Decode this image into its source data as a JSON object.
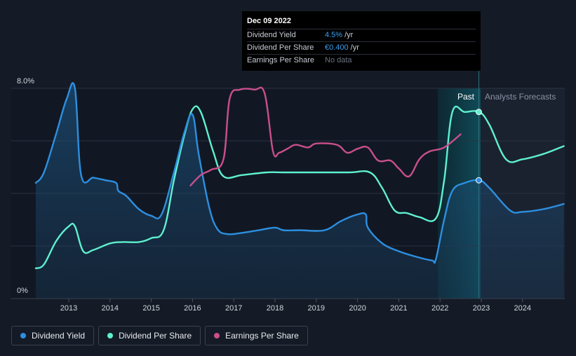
{
  "chart_data": {
    "type": "line",
    "y_axis": {
      "max_label": "8.0%",
      "min_label": "0%",
      "ylim": [
        0,
        8.0
      ]
    },
    "x_ticks": [
      "2013",
      "2014",
      "2015",
      "2016",
      "2017",
      "2018",
      "2019",
      "2020",
      "2021",
      "2022",
      "2023",
      "2024"
    ],
    "regions": {
      "past": "Past",
      "forecast": "Analysts Forecasts"
    },
    "series": [
      {
        "name": "Dividend Yield",
        "color": "#2d8fe0",
        "axis": "percent",
        "points": [
          [
            2012.2,
            4.4
          ],
          [
            2012.4,
            4.8
          ],
          [
            2012.7,
            6.3
          ],
          [
            2012.95,
            7.6
          ],
          [
            2013.15,
            8.0
          ],
          [
            2013.3,
            4.7
          ],
          [
            2013.6,
            4.6
          ],
          [
            2013.9,
            4.5
          ],
          [
            2014.15,
            4.4
          ],
          [
            2014.2,
            4.1
          ],
          [
            2014.4,
            3.9
          ],
          [
            2014.7,
            3.4
          ],
          [
            2015.0,
            3.15
          ],
          [
            2015.25,
            3.2
          ],
          [
            2015.55,
            4.8
          ],
          [
            2015.8,
            6.3
          ],
          [
            2016.0,
            7.0
          ],
          [
            2016.15,
            5.5
          ],
          [
            2016.4,
            3.5
          ],
          [
            2016.6,
            2.65
          ],
          [
            2016.85,
            2.45
          ],
          [
            2017.2,
            2.5
          ],
          [
            2017.6,
            2.6
          ],
          [
            2018.0,
            2.7
          ],
          [
            2018.2,
            2.6
          ],
          [
            2018.6,
            2.6
          ],
          [
            2019.2,
            2.6
          ],
          [
            2019.6,
            2.95
          ],
          [
            2020.0,
            3.2
          ],
          [
            2020.2,
            3.2
          ],
          [
            2020.25,
            2.7
          ],
          [
            2020.6,
            2.1
          ],
          [
            2021.0,
            1.8
          ],
          [
            2021.4,
            1.6
          ],
          [
            2021.8,
            1.45
          ],
          [
            2021.9,
            1.5
          ],
          [
            2022.1,
            3.0
          ],
          [
            2022.3,
            4.1
          ],
          [
            2022.6,
            4.4
          ],
          [
            2022.95,
            4.5
          ],
          [
            2023.2,
            4.2
          ],
          [
            2023.7,
            3.35
          ],
          [
            2024.0,
            3.3
          ],
          [
            2024.5,
            3.4
          ],
          [
            2025.0,
            3.6
          ]
        ]
      },
      {
        "name": "Dividend Per Share",
        "color": "#5ff0cf",
        "axis": "percent",
        "points": [
          [
            2012.2,
            1.15
          ],
          [
            2012.4,
            1.3
          ],
          [
            2012.7,
            2.2
          ],
          [
            2013.0,
            2.75
          ],
          [
            2013.15,
            2.75
          ],
          [
            2013.35,
            1.8
          ],
          [
            2013.6,
            1.85
          ],
          [
            2014.0,
            2.1
          ],
          [
            2014.3,
            2.15
          ],
          [
            2014.7,
            2.15
          ],
          [
            2015.0,
            2.3
          ],
          [
            2015.3,
            2.6
          ],
          [
            2015.55,
            4.5
          ],
          [
            2015.8,
            6.2
          ],
          [
            2016.0,
            7.2
          ],
          [
            2016.2,
            7.1
          ],
          [
            2016.5,
            5.6
          ],
          [
            2016.75,
            4.65
          ],
          [
            2017.2,
            4.7
          ],
          [
            2017.8,
            4.8
          ],
          [
            2018.2,
            4.8
          ],
          [
            2019.0,
            4.8
          ],
          [
            2019.8,
            4.8
          ],
          [
            2020.3,
            4.8
          ],
          [
            2020.6,
            4.2
          ],
          [
            2020.9,
            3.35
          ],
          [
            2021.2,
            3.25
          ],
          [
            2021.5,
            3.1
          ],
          [
            2021.9,
            3.05
          ],
          [
            2022.1,
            4.5
          ],
          [
            2022.3,
            7.1
          ],
          [
            2022.6,
            7.1
          ],
          [
            2022.95,
            7.1
          ],
          [
            2023.2,
            6.6
          ],
          [
            2023.6,
            5.3
          ],
          [
            2024.0,
            5.3
          ],
          [
            2024.5,
            5.5
          ],
          [
            2025.0,
            5.8
          ]
        ]
      },
      {
        "name": "Earnings Per Share",
        "color": "#c94f8c",
        "axis": "percent",
        "points": [
          [
            2015.95,
            4.3
          ],
          [
            2016.2,
            4.7
          ],
          [
            2016.45,
            4.9
          ],
          [
            2016.75,
            5.3
          ],
          [
            2016.9,
            7.6
          ],
          [
            2017.15,
            7.95
          ],
          [
            2017.5,
            7.95
          ],
          [
            2017.75,
            7.8
          ],
          [
            2017.95,
            5.6
          ],
          [
            2018.1,
            5.55
          ],
          [
            2018.3,
            5.7
          ],
          [
            2018.5,
            5.85
          ],
          [
            2018.8,
            5.75
          ],
          [
            2019.0,
            5.9
          ],
          [
            2019.5,
            5.85
          ],
          [
            2019.75,
            5.55
          ],
          [
            2020.0,
            5.7
          ],
          [
            2020.25,
            5.75
          ],
          [
            2020.5,
            5.25
          ],
          [
            2020.8,
            5.25
          ],
          [
            2021.0,
            4.95
          ],
          [
            2021.25,
            4.65
          ],
          [
            2021.5,
            5.3
          ],
          [
            2021.75,
            5.6
          ],
          [
            2022.1,
            5.75
          ],
          [
            2022.5,
            6.25
          ]
        ]
      }
    ],
    "highlight": {
      "x": 2022.94,
      "markers": [
        {
          "series": 1,
          "y": 7.1
        },
        {
          "series": 0,
          "y": 4.5
        }
      ]
    },
    "legend": [
      "Dividend Yield",
      "Dividend Per Share",
      "Earnings Per Share"
    ]
  },
  "tooltip": {
    "date": "Dec 09 2022",
    "rows": [
      {
        "name": "Dividend Yield",
        "value": "4.5%",
        "unit": "/yr"
      },
      {
        "name": "Dividend Per Share",
        "value": "€0.400",
        "unit": "/yr"
      },
      {
        "name": "Earnings Per Share",
        "value": "No data",
        "unit": ""
      }
    ]
  }
}
